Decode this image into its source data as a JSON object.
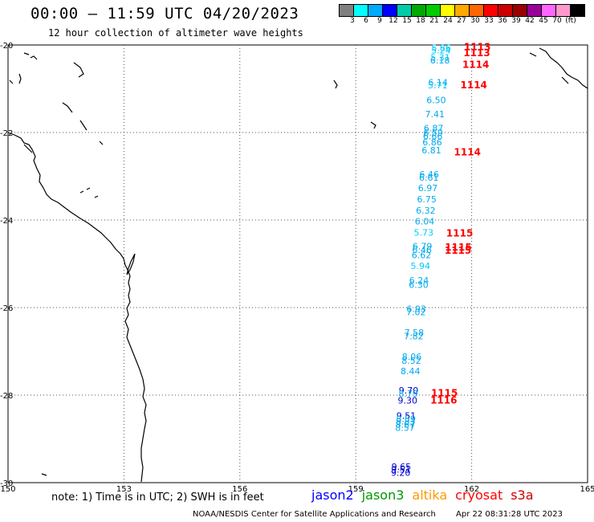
{
  "header": {
    "title": "00:00 – 11:59 UTC 04/20/2023",
    "subtitle": "12 hour collection of altimeter wave heights"
  },
  "scale": {
    "swatches": [
      "#808080",
      "#00ffff",
      "#00aaff",
      "#0000ff",
      "#00ccaa",
      "#00aa00",
      "#00cc00",
      "#ffff00",
      "#ffaa00",
      "#ff6600",
      "#ff0000",
      "#cc0000",
      "#990000",
      "#990099",
      "#ff66ff",
      "#ff99cc",
      "#000000"
    ],
    "labels": [
      "3",
      "6",
      "9",
      "12",
      "15",
      "18",
      "21",
      "24",
      "27",
      "30",
      "33",
      "36",
      "39",
      "42",
      "45",
      "70",
      "(ft)"
    ]
  },
  "axes": {
    "lon_labels": [
      "150",
      "153",
      "156",
      "159",
      "162",
      "165"
    ],
    "lat_labels": [
      "-20",
      "-22",
      "-24",
      "-26",
      "-28",
      "-30"
    ]
  },
  "swh_points": [
    {
      "lat": -20.06,
      "v": "5.86"
    },
    {
      "lat": -20.12,
      "v": "5.24"
    },
    {
      "lat": -20.28,
      "v": "5.31"
    },
    {
      "lat": -20.35,
      "v": "6.18"
    },
    {
      "lat": -20.85,
      "v": "6.14"
    },
    {
      "lat": -20.92,
      "v": "5.71"
    },
    {
      "lat": -21.26,
      "v": "6.50"
    },
    {
      "lat": -21.58,
      "v": "7.41"
    },
    {
      "lat": -21.9,
      "v": "6.87"
    },
    {
      "lat": -22.0,
      "v": "6.59"
    },
    {
      "lat": -22.08,
      "v": "6.66"
    },
    {
      "lat": -22.22,
      "v": "6.86"
    },
    {
      "lat": -22.4,
      "v": "6.81"
    },
    {
      "lat": -22.95,
      "v": "6.46"
    },
    {
      "lat": -23.03,
      "v": "6.61"
    },
    {
      "lat": -23.27,
      "v": "6.97"
    },
    {
      "lat": -23.52,
      "v": "6.75"
    },
    {
      "lat": -23.78,
      "v": "6.32"
    },
    {
      "lat": -24.03,
      "v": "6.04"
    },
    {
      "lat": -24.28,
      "v": "5.73"
    },
    {
      "lat": -24.6,
      "v": "6.79"
    },
    {
      "lat": -24.68,
      "v": "6.46"
    },
    {
      "lat": -24.8,
      "v": "6.62"
    },
    {
      "lat": -25.05,
      "v": "5.94"
    },
    {
      "lat": -25.38,
      "v": "6.24"
    },
    {
      "lat": -25.48,
      "v": "6.30"
    },
    {
      "lat": -26.03,
      "v": "6.93"
    },
    {
      "lat": -26.1,
      "v": "7.02"
    },
    {
      "lat": -26.57,
      "v": "7.58"
    },
    {
      "lat": -26.65,
      "v": "7.82"
    },
    {
      "lat": -27.12,
      "v": "8.06"
    },
    {
      "lat": -27.21,
      "v": "8.52"
    },
    {
      "lat": -27.45,
      "v": "8.44"
    },
    {
      "lat": -27.89,
      "v": "9.70"
    },
    {
      "lat": -27.96,
      "v": "8.79"
    },
    {
      "lat": -28.12,
      "v": "9.30"
    },
    {
      "lat": -28.47,
      "v": "9.51"
    },
    {
      "lat": -28.54,
      "v": "8.59"
    },
    {
      "lat": -28.6,
      "v": "8.83"
    },
    {
      "lat": -28.67,
      "v": "8.67"
    },
    {
      "lat": -28.74,
      "v": "8.57"
    },
    {
      "lat": -29.63,
      "v": "9.65"
    },
    {
      "lat": -29.7,
      "v": "9.51"
    },
    {
      "lat": -29.77,
      "v": "9.20"
    }
  ],
  "time_labels": [
    {
      "lat": -20.05,
      "v": "1113"
    },
    {
      "lat": -20.18,
      "v": "1113"
    },
    {
      "lat": -20.45,
      "v": "1114"
    },
    {
      "lat": -20.92,
      "v": "1114"
    },
    {
      "lat": -22.45,
      "v": "1114"
    },
    {
      "lat": -24.3,
      "v": "1115"
    },
    {
      "lat": -24.62,
      "v": "1115"
    },
    {
      "lat": -24.7,
      "v": "1115"
    },
    {
      "lat": -27.95,
      "v": "1115"
    },
    {
      "lat": -28.12,
      "v": "1116"
    }
  ],
  "note": "note: 1) Time is in UTC; 2) SWH is in feet",
  "satellites": [
    {
      "name": "jason2",
      "color": "#0000ff"
    },
    {
      "name": "jason3",
      "color": "#009900"
    },
    {
      "name": "altika",
      "color": "#ff9900"
    },
    {
      "name": "cryosat",
      "color": "#ff0000"
    },
    {
      "name": "s3a",
      "color": "#cc0000"
    }
  ],
  "footer": {
    "credit": "NOAA/NESDIS Center for Satellite Applications and Research",
    "timestamp": "Apr 22 08:31:28 UTC 2023"
  }
}
